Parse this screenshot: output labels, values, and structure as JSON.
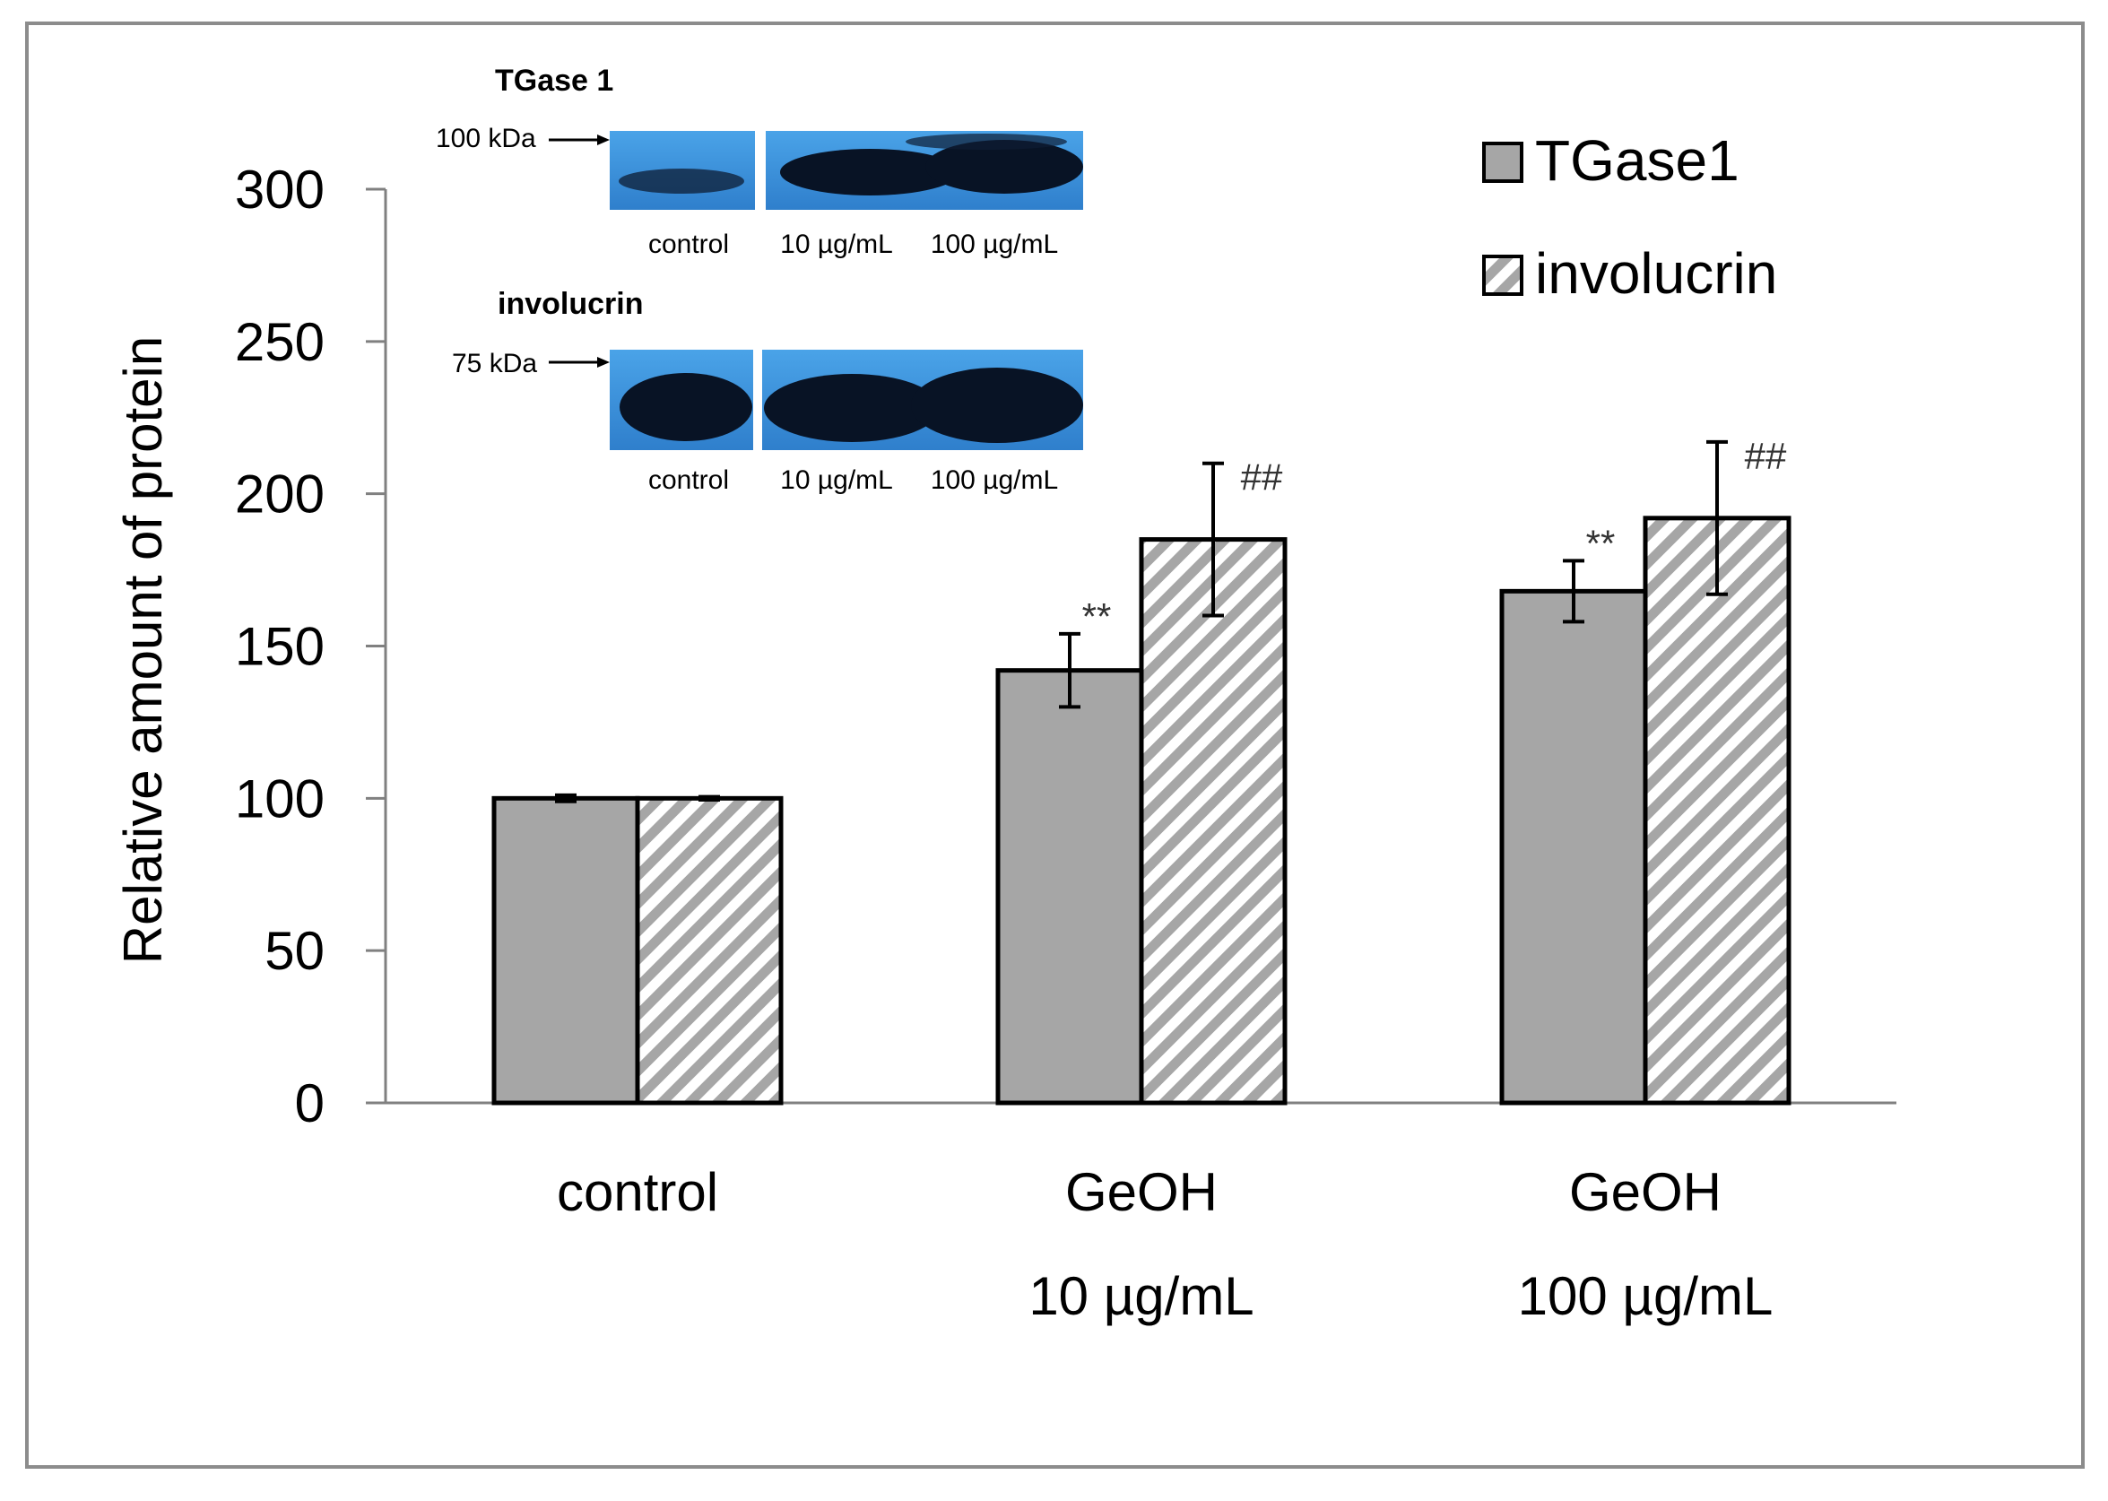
{
  "chart_data": {
    "type": "bar",
    "ylabel": "Relative amount of protein",
    "ylim": [
      0,
      300
    ],
    "yticks": [
      0,
      50,
      100,
      150,
      200,
      250,
      300
    ],
    "categories": [
      {
        "line1": "control",
        "line2": ""
      },
      {
        "line1": "GeOH",
        "line2": "10 µg/mL"
      },
      {
        "line1": "GeOH",
        "line2": "100 µg/mL"
      }
    ],
    "series": [
      {
        "name": "TGase1",
        "pattern": "solid",
        "color": "#a6a6a6",
        "values": [
          100,
          142,
          168
        ],
        "errors": [
          1,
          12,
          10
        ],
        "marks": [
          "",
          "**",
          "**"
        ]
      },
      {
        "name": "involucrin",
        "pattern": "hatched",
        "color": "#a6a6a6",
        "values": [
          100,
          185,
          192
        ],
        "errors": [
          0.5,
          25,
          25
        ],
        "marks": [
          "",
          "##",
          "##"
        ]
      }
    ],
    "legend": {
      "position": "top-right"
    }
  },
  "inset": {
    "blots": [
      {
        "title": "TGase 1",
        "marker": "100 kDa",
        "lanes": [
          "control",
          "10 µg/mL",
          "100 µg/mL"
        ]
      },
      {
        "title": "involucrin",
        "marker": "75 kDa",
        "lanes": [
          "control",
          "10 µg/mL",
          "100 µg/mL"
        ]
      }
    ],
    "blot_color": "#3d8fd6"
  }
}
